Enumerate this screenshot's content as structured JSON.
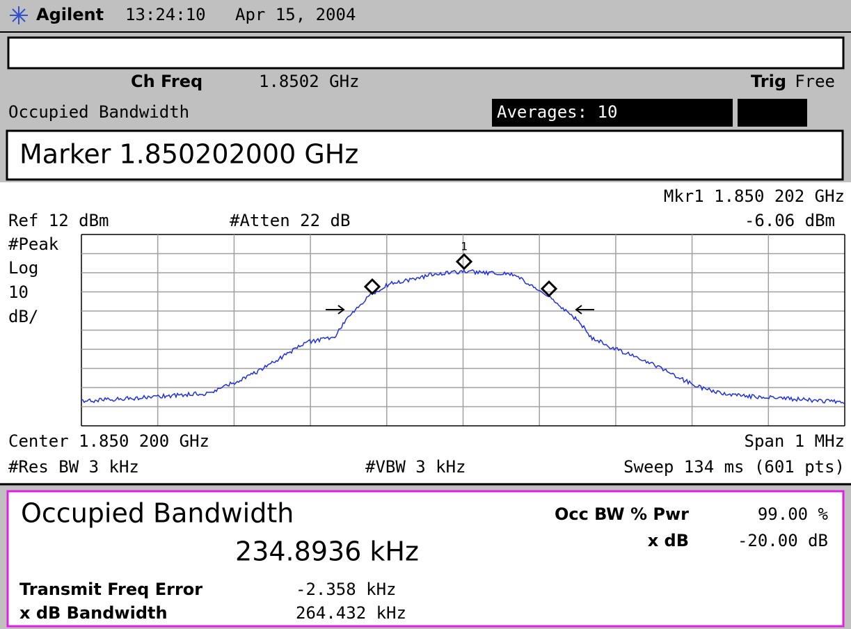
{
  "header": {
    "brand": "Agilent",
    "time": "13:24:10",
    "date": "Apr 15, 2004"
  },
  "settings": {
    "ch_freq_label": "Ch Freq",
    "ch_freq": "1.8502 GHz",
    "trig_label": "Trig",
    "trig": "Free",
    "mode": "Occupied Bandwidth",
    "averages": "Averages: 10"
  },
  "marker_display": "Marker 1.850202000 GHz",
  "graph": {
    "marker_readout": "Mkr1  1.850 202 GHz",
    "ref_level": "Ref 12 dBm",
    "atten": "#Atten 22 dB",
    "marker_level": "-6.06 dBm",
    "detector": "#Peak",
    "scale": [
      "Log",
      "10",
      "dB/"
    ],
    "marker_number": "1",
    "center": "Center 1.850 200 GHz",
    "span": "Span 1 MHz",
    "rbw": "#Res BW 3 kHz",
    "vbw": "#VBW 3 kHz",
    "sweep": "Sweep 134 ms (601 pts)"
  },
  "results": {
    "title": "Occupied Bandwidth",
    "occ_bw": "234.8936 kHz",
    "pwr_label": "Occ BW % Pwr",
    "pwr": "99.00 %",
    "xdb_label": "x dB",
    "xdb": "-20.00 dB",
    "freq_error_label": "Transmit Freq Error",
    "freq_error": "-2.358 kHz",
    "xdb_bw_label": "x dB Bandwidth",
    "xdb_bw": "264.432 kHz"
  }
}
